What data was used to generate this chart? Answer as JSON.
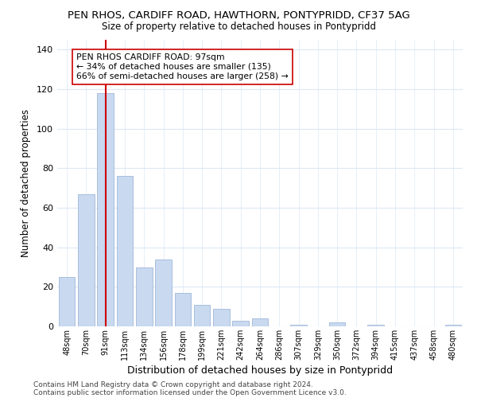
{
  "title_line1": "PEN RHOS, CARDIFF ROAD, HAWTHORN, PONTYPRIDD, CF37 5AG",
  "title_line2": "Size of property relative to detached houses in Pontypridd",
  "xlabel": "Distribution of detached houses by size in Pontypridd",
  "ylabel": "Number of detached properties",
  "bin_labels": [
    "48sqm",
    "70sqm",
    "91sqm",
    "113sqm",
    "134sqm",
    "156sqm",
    "178sqm",
    "199sqm",
    "221sqm",
    "242sqm",
    "264sqm",
    "286sqm",
    "307sqm",
    "329sqm",
    "350sqm",
    "372sqm",
    "394sqm",
    "415sqm",
    "437sqm",
    "458sqm",
    "480sqm"
  ],
  "bar_heights": [
    25,
    67,
    118,
    76,
    30,
    34,
    17,
    11,
    9,
    3,
    4,
    0,
    1,
    0,
    2,
    0,
    1,
    0,
    0,
    0,
    1
  ],
  "bar_color": "#c8d9f0",
  "bar_edge_color": "#a0b8d8",
  "vline_x_index": 2,
  "vline_color": "#cc0000",
  "annotation_text": "PEN RHOS CARDIFF ROAD: 97sqm\n← 34% of detached houses are smaller (135)\n66% of semi-detached houses are larger (258) →",
  "annotation_box_edgecolor": "#cc0000",
  "ylim": [
    0,
    145
  ],
  "yticks": [
    0,
    20,
    40,
    60,
    80,
    100,
    120,
    140
  ],
  "footer_line1": "Contains HM Land Registry data © Crown copyright and database right 2024.",
  "footer_line2": "Contains public sector information licensed under the Open Government Licence v3.0.",
  "bg_color": "#ffffff",
  "grid_color": "#dce8f5"
}
